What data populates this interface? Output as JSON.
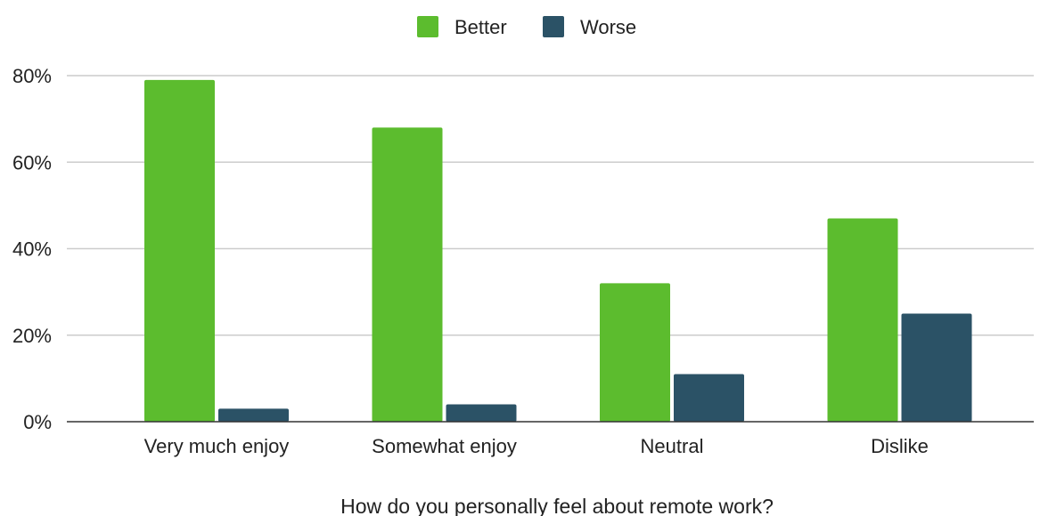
{
  "chart_data": {
    "type": "bar",
    "title": "",
    "xlabel": "How do you personally feel about remote work?",
    "ylabel": "",
    "categories": [
      "Very much enjoy",
      "Somewhat enjoy",
      "Neutral",
      "Dislike"
    ],
    "series": [
      {
        "name": "Better",
        "values": [
          79,
          68,
          32,
          47
        ],
        "color": "#5cbc2e"
      },
      {
        "name": "Worse",
        "values": [
          3,
          4,
          11,
          25
        ],
        "color": "#2b5266"
      }
    ],
    "ylim": [
      0,
      80
    ],
    "yticks": [
      "0%",
      "20%",
      "40%",
      "60%",
      "80%"
    ],
    "ytick_values": [
      0,
      20,
      40,
      60,
      80
    ],
    "grid": true,
    "legend_position": "top-center"
  }
}
